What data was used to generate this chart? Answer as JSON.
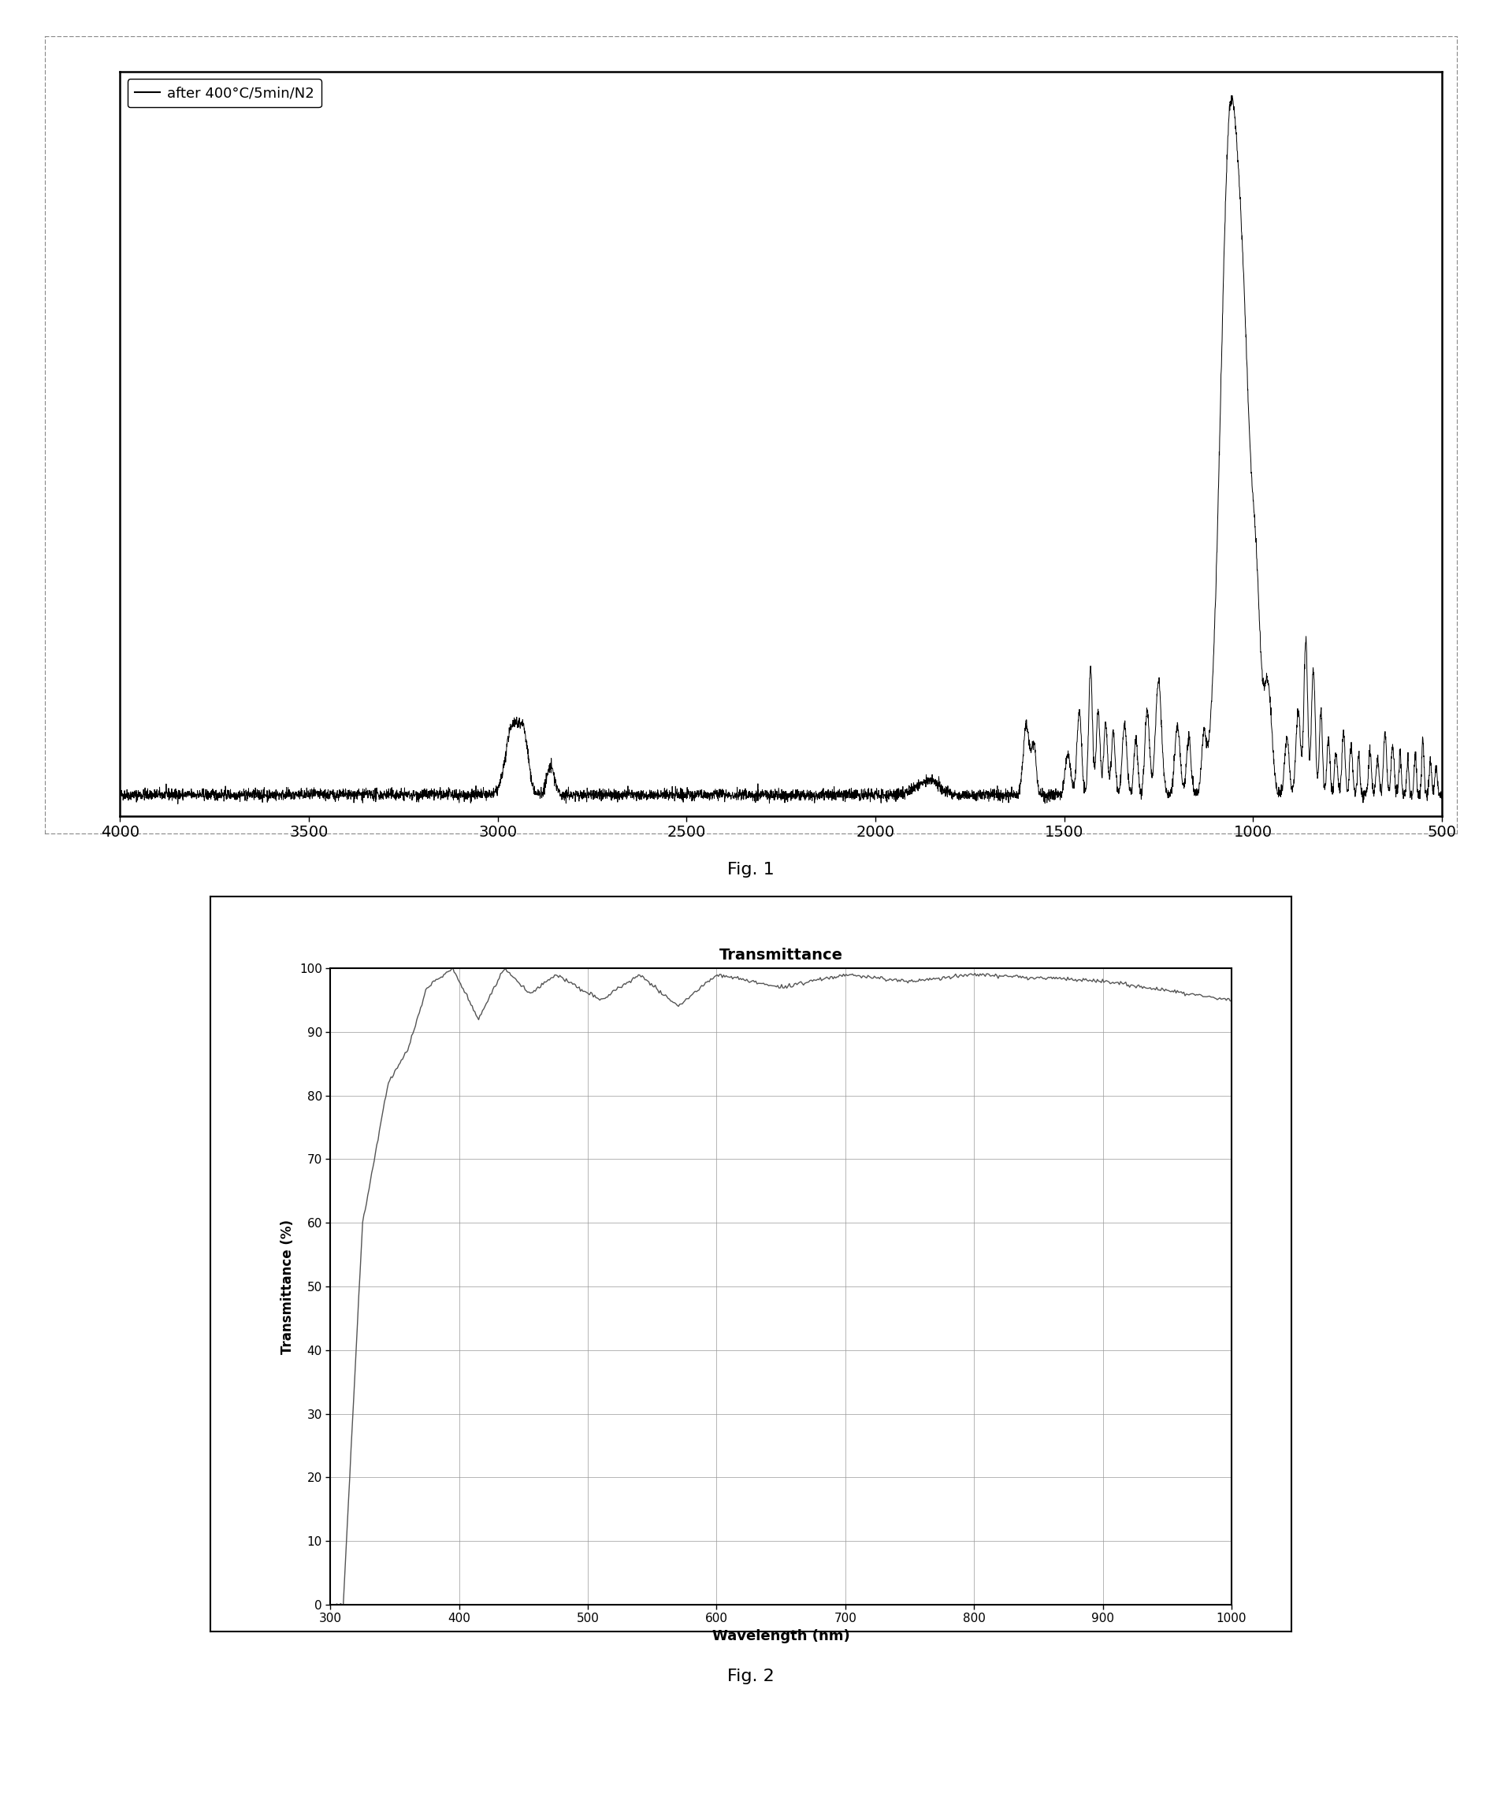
{
  "fig1": {
    "legend_label": "after 400°C/5min/N2",
    "line_color": "#000000",
    "bg_color": "#ffffff",
    "xticks": [
      4000,
      3500,
      3000,
      2500,
      2000,
      1500,
      1000,
      500
    ]
  },
  "fig2": {
    "title": "Transmittance",
    "xlabel": "Wavelength (nm)",
    "ylabel": "Transmittance (%)",
    "xlim": [
      300,
      1000
    ],
    "ylim": [
      0,
      100
    ],
    "xticks": [
      300,
      400,
      500,
      600,
      700,
      800,
      900,
      1000
    ],
    "yticks": [
      0,
      10,
      20,
      30,
      40,
      50,
      60,
      70,
      80,
      90,
      100
    ],
    "line_color": "#555555",
    "bg_color": "#ffffff",
    "grid_color": "#999999"
  },
  "fig1_caption": "Fig. 1",
  "fig2_caption": "Fig. 2"
}
